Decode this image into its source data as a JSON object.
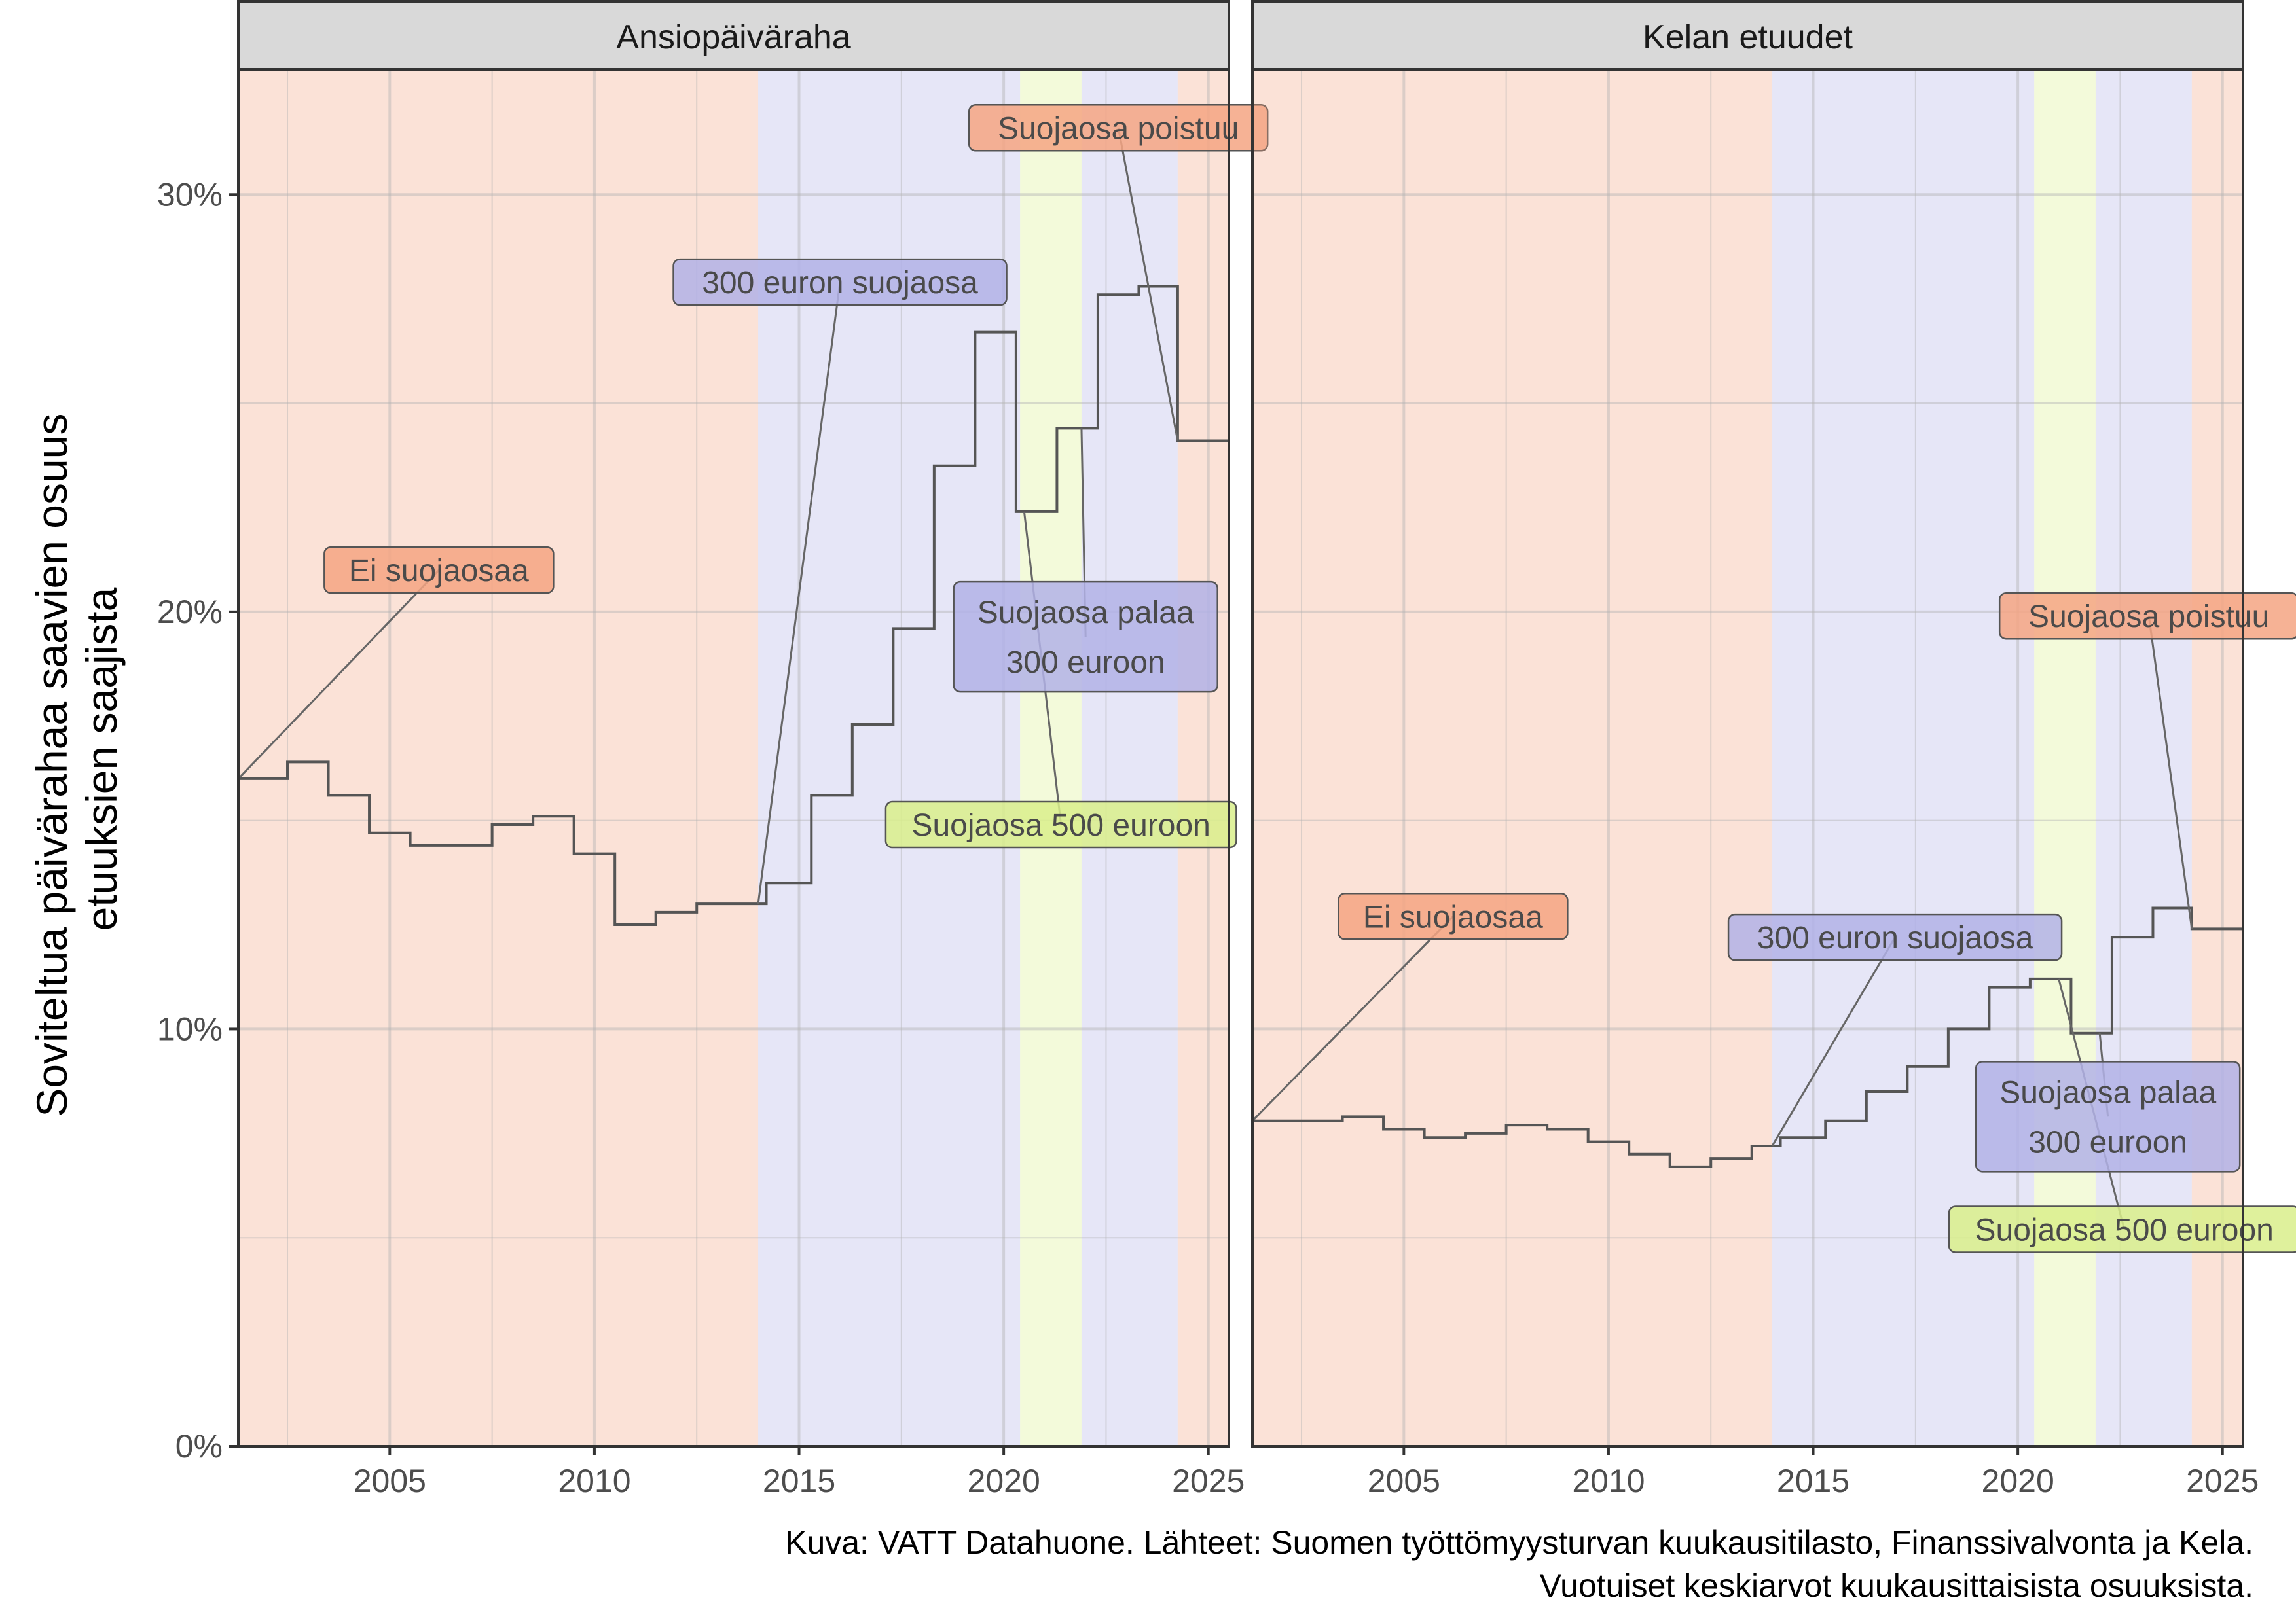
{
  "y_axis_label_lines": [
    "Soviteltua päivärahaa saavien osuus",
    "etuuksien saajista"
  ],
  "caption_lines": [
    "Kuva: VATT Datahuone. Lähteet: Suomen työttömyysturvan kuukausitilasto, Finanssivalvonta ja Kela.",
    "Vuotuiset keskiarvot kuukausittaisista osuuksista."
  ],
  "colors": {
    "no_protection": "#f4a582",
    "protection_300": "#b2b2e6",
    "protection_500": "#d9ef8b",
    "line": "#555555",
    "strip_bg": "#d9d9d9",
    "grid": "#ebebeb"
  },
  "chart_data": {
    "type": "line",
    "line_style": "step",
    "xlim": [
      2001.3,
      2025.5
    ],
    "ylim": [
      0,
      0.33
    ],
    "x_ticks": [
      2005,
      2010,
      2015,
      2020,
      2025
    ],
    "y_ticks": [
      0,
      0.1,
      0.2,
      0.3
    ],
    "y_tick_labels": [
      "0%",
      "10%",
      "20%",
      "30%"
    ],
    "grid": true,
    "periods": [
      {
        "start": 2001.3,
        "end": 2014.0,
        "kind": "no_protection"
      },
      {
        "start": 2014.0,
        "end": 2020.4,
        "kind": "protection_300"
      },
      {
        "start": 2020.4,
        "end": 2021.9,
        "kind": "protection_500"
      },
      {
        "start": 2021.9,
        "end": 2024.25,
        "kind": "protection_300"
      },
      {
        "start": 2024.25,
        "end": 2025.5,
        "kind": "no_protection"
      }
    ],
    "panels": [
      {
        "title": "Ansiopäiväraha",
        "steps": [
          {
            "x": 2001.3,
            "y": 0.16
          },
          {
            "x": 2002.5,
            "y": 0.164
          },
          {
            "x": 2003.5,
            "y": 0.156
          },
          {
            "x": 2004.5,
            "y": 0.147
          },
          {
            "x": 2005.5,
            "y": 0.144
          },
          {
            "x": 2007.5,
            "y": 0.149
          },
          {
            "x": 2008.5,
            "y": 0.151
          },
          {
            "x": 2009.5,
            "y": 0.142
          },
          {
            "x": 2010.5,
            "y": 0.125
          },
          {
            "x": 2011.5,
            "y": 0.128
          },
          {
            "x": 2012.5,
            "y": 0.13
          },
          {
            "x": 2013.5,
            "y": 0.13
          },
          {
            "x": 2014.2,
            "y": 0.135
          },
          {
            "x": 2015.3,
            "y": 0.156
          },
          {
            "x": 2016.3,
            "y": 0.173
          },
          {
            "x": 2017.3,
            "y": 0.196
          },
          {
            "x": 2018.3,
            "y": 0.235
          },
          {
            "x": 2019.3,
            "y": 0.267
          },
          {
            "x": 2020.3,
            "y": 0.224
          },
          {
            "x": 2021.3,
            "y": 0.244
          },
          {
            "x": 2022.3,
            "y": 0.276
          },
          {
            "x": 2023.3,
            "y": 0.278
          },
          {
            "x": 2024.25,
            "y": 0.241
          }
        ],
        "x_end": 2025.5,
        "annotations": [
          {
            "text": [
              "Ei suojaosaa"
            ],
            "kind": "no_protection",
            "label_x": 2006.2,
            "label_y": 0.21,
            "point_x": 2001.3,
            "point_y": 0.16
          },
          {
            "text": [
              "300 euron suojaosa"
            ],
            "kind": "protection_300",
            "label_x": 2016.0,
            "label_y": 0.279,
            "point_x": 2014.0,
            "point_y": 0.13
          },
          {
            "text": [
              "Suojaosa poistuu"
            ],
            "kind": "no_protection",
            "label_x": 2022.8,
            "label_y": 0.316,
            "point_x": 2024.25,
            "point_y": 0.241
          },
          {
            "text": [
              "Suojaosa palaa",
              "300 euroon"
            ],
            "kind": "protection_300",
            "label_x": 2022.0,
            "label_y": 0.194,
            "point_x": 2021.9,
            "point_y": 0.244
          },
          {
            "text": [
              "Suojaosa 500 euroon"
            ],
            "kind": "protection_500",
            "label_x": 2021.4,
            "label_y": 0.149,
            "point_x": 2020.5,
            "point_y": 0.224
          }
        ]
      },
      {
        "title": "Kelan etuudet",
        "steps": [
          {
            "x": 2001.3,
            "y": 0.078
          },
          {
            "x": 2003.5,
            "y": 0.079
          },
          {
            "x": 2004.5,
            "y": 0.076
          },
          {
            "x": 2005.5,
            "y": 0.074
          },
          {
            "x": 2006.5,
            "y": 0.075
          },
          {
            "x": 2007.5,
            "y": 0.077
          },
          {
            "x": 2008.5,
            "y": 0.076
          },
          {
            "x": 2009.5,
            "y": 0.073
          },
          {
            "x": 2010.5,
            "y": 0.07
          },
          {
            "x": 2011.5,
            "y": 0.067
          },
          {
            "x": 2012.5,
            "y": 0.069
          },
          {
            "x": 2013.5,
            "y": 0.072
          },
          {
            "x": 2014.2,
            "y": 0.074
          },
          {
            "x": 2015.3,
            "y": 0.078
          },
          {
            "x": 2016.3,
            "y": 0.085
          },
          {
            "x": 2017.3,
            "y": 0.091
          },
          {
            "x": 2018.3,
            "y": 0.1
          },
          {
            "x": 2019.3,
            "y": 0.11
          },
          {
            "x": 2020.3,
            "y": 0.112
          },
          {
            "x": 2021.3,
            "y": 0.099
          },
          {
            "x": 2022.3,
            "y": 0.122
          },
          {
            "x": 2023.3,
            "y": 0.129
          },
          {
            "x": 2024.25,
            "y": 0.124
          }
        ],
        "x_end": 2025.5,
        "annotations": [
          {
            "text": [
              "Ei suojaosaa"
            ],
            "kind": "no_protection",
            "label_x": 2006.2,
            "label_y": 0.127,
            "point_x": 2001.3,
            "point_y": 0.078
          },
          {
            "text": [
              "300 euron suojaosa"
            ],
            "kind": "protection_300",
            "label_x": 2017.0,
            "label_y": 0.122,
            "point_x": 2014.0,
            "point_y": 0.072
          },
          {
            "text": [
              "Suojaosa poistuu"
            ],
            "kind": "no_protection",
            "label_x": 2023.2,
            "label_y": 0.199,
            "point_x": 2024.25,
            "point_y": 0.124
          },
          {
            "text": [
              "Suojaosa palaa",
              "300 euroon"
            ],
            "kind": "protection_300",
            "label_x": 2022.2,
            "label_y": 0.079,
            "point_x": 2022.0,
            "point_y": 0.099
          },
          {
            "text": [
              "Suojaosa 500 euroon"
            ],
            "kind": "protection_500",
            "label_x": 2022.6,
            "label_y": 0.052,
            "point_x": 2021.0,
            "point_y": 0.112
          }
        ]
      }
    ]
  }
}
